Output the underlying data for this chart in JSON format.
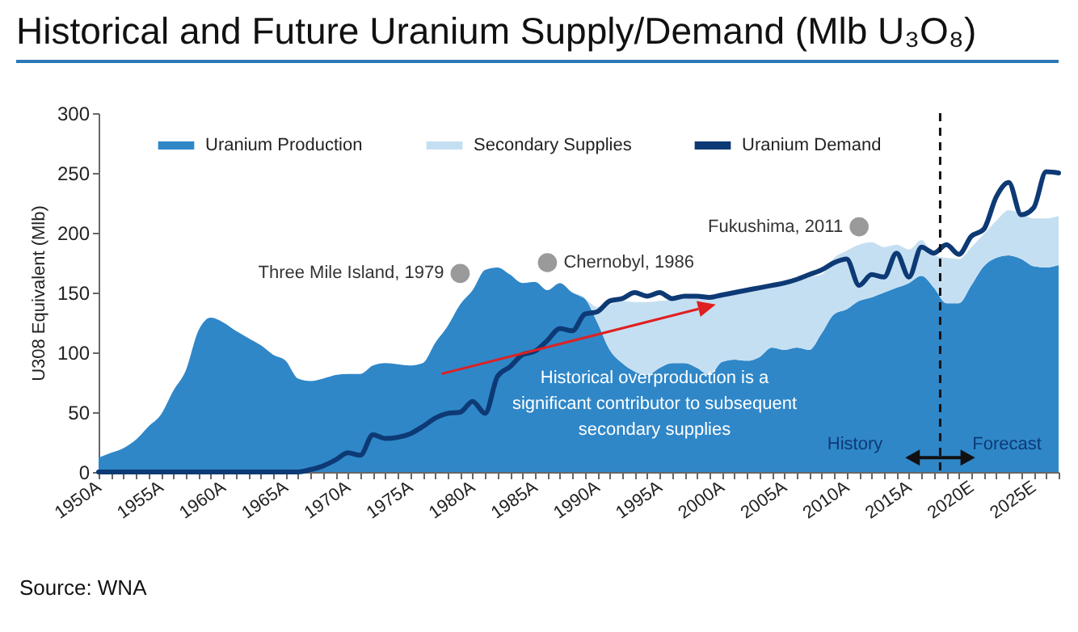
{
  "chart_data": {
    "type": "area",
    "title": "Historical and Future Uranium Supply/Demand (Mlb U₃O₈)",
    "ylabel": "U308 Equivalent (Mlb)",
    "stacked": true,
    "legend": "top",
    "x": [
      1950,
      1951,
      1952,
      1953,
      1954,
      1955,
      1956,
      1957,
      1958,
      1959,
      1960,
      1961,
      1962,
      1963,
      1964,
      1965,
      1966,
      1967,
      1968,
      1969,
      1970,
      1971,
      1972,
      1973,
      1974,
      1975,
      1976,
      1977,
      1978,
      1979,
      1980,
      1981,
      1982,
      1983,
      1984,
      1985,
      1986,
      1987,
      1988,
      1989,
      1990,
      1991,
      1992,
      1993,
      1994,
      1995,
      1996,
      1997,
      1998,
      1999,
      2000,
      2001,
      2002,
      2003,
      2004,
      2005,
      2006,
      2007,
      2008,
      2009,
      2010,
      2011,
      2012,
      2013,
      2014,
      2015,
      2016,
      2017,
      2018,
      2019,
      2020,
      2021,
      2022,
      2023,
      2024,
      2025,
      2026,
      2027
    ],
    "series": [
      {
        "name": "Uranium Production",
        "color": "#2f87c8",
        "values": [
          12,
          16,
          20,
          27,
          38,
          48,
          68,
          85,
          118,
          129,
          125,
          118,
          112,
          106,
          98,
          93,
          78,
          76,
          78,
          81,
          82,
          82,
          89,
          91,
          90,
          89,
          91,
          108,
          122,
          140,
          152,
          169,
          171,
          165,
          158,
          159,
          152,
          158,
          150,
          145,
          125,
          102,
          91,
          84,
          81,
          87,
          91,
          91,
          87,
          81,
          92,
          94,
          93,
          96,
          104,
          102,
          104,
          102,
          116,
          132,
          136,
          143,
          146,
          150,
          154,
          158,
          164,
          154,
          141,
          141,
          156,
          172,
          179,
          181,
          178,
          172,
          171,
          173
        ]
      },
      {
        "name": "Secondary Supplies",
        "color": "#c5dff2",
        "values": [
          0,
          0,
          0,
          0,
          0,
          0,
          0,
          0,
          0,
          0,
          0,
          0,
          0,
          0,
          0,
          0,
          0,
          0,
          0,
          0,
          0,
          0,
          0,
          0,
          0,
          0,
          0,
          0,
          0,
          0,
          0,
          0,
          0,
          0,
          0,
          0,
          0,
          0,
          0,
          0,
          13,
          38,
          52,
          58,
          61,
          56,
          53,
          54,
          59,
          66,
          56,
          56,
          59,
          58,
          52,
          55,
          55,
          61,
          49,
          47,
          49,
          47,
          46,
          38,
          36,
          28,
          30,
          27,
          38,
          37,
          32,
          27,
          31,
          38,
          38,
          40,
          41,
          41
        ]
      },
      {
        "name": "Uranium Demand",
        "type": "line",
        "color": "#0d3a75",
        "values": [
          0,
          0,
          0,
          0,
          0,
          0,
          0,
          0,
          0,
          0,
          0,
          0,
          0,
          0,
          0,
          0,
          0,
          2,
          5,
          10,
          16,
          14,
          31,
          28,
          29,
          32,
          38,
          45,
          49,
          50,
          59,
          49,
          80,
          88,
          98,
          101,
          110,
          120,
          118,
          132,
          134,
          143,
          145,
          150,
          147,
          150,
          145,
          147,
          147,
          146,
          148,
          150,
          152,
          154,
          156,
          158,
          161,
          165,
          169,
          175,
          178,
          156,
          165,
          163,
          183,
          163,
          188,
          183,
          190,
          182,
          197,
          203,
          230,
          242,
          215,
          221,
          251,
          250
        ]
      }
    ],
    "xlim": [
      1950,
      2027
    ],
    "xticks": [
      {
        "value": 1950,
        "label": "1950A"
      },
      {
        "value": 1951,
        "label": null
      },
      {
        "value": 1952,
        "label": null
      },
      {
        "value": 1953,
        "label": null
      },
      {
        "value": 1954,
        "label": null
      },
      {
        "value": 1955,
        "label": "1955A"
      },
      {
        "value": 1956,
        "label": null
      },
      {
        "value": 1957,
        "label": null
      },
      {
        "value": 1958,
        "label": null
      },
      {
        "value": 1959,
        "label": null
      },
      {
        "value": 1960,
        "label": "1960A"
      },
      {
        "value": 1961,
        "label": null
      },
      {
        "value": 1962,
        "label": null
      },
      {
        "value": 1963,
        "label": null
      },
      {
        "value": 1964,
        "label": null
      },
      {
        "value": 1965,
        "label": "1965A"
      },
      {
        "value": 1966,
        "label": null
      },
      {
        "value": 1967,
        "label": null
      },
      {
        "value": 1968,
        "label": null
      },
      {
        "value": 1969,
        "label": null
      },
      {
        "value": 1970,
        "label": "1970A"
      },
      {
        "value": 1971,
        "label": null
      },
      {
        "value": 1972,
        "label": null
      },
      {
        "value": 1973,
        "label": null
      },
      {
        "value": 1974,
        "label": null
      },
      {
        "value": 1975,
        "label": "1975A"
      },
      {
        "value": 1976,
        "label": null
      },
      {
        "value": 1977,
        "label": null
      },
      {
        "value": 1978,
        "label": null
      },
      {
        "value": 1979,
        "label": null
      },
      {
        "value": 1980,
        "label": "1980A"
      },
      {
        "value": 1981,
        "label": null
      },
      {
        "value": 1982,
        "label": null
      },
      {
        "value": 1983,
        "label": null
      },
      {
        "value": 1984,
        "label": null
      },
      {
        "value": 1985,
        "label": "1985A"
      },
      {
        "value": 1986,
        "label": null
      },
      {
        "value": 1987,
        "label": null
      },
      {
        "value": 1988,
        "label": null
      },
      {
        "value": 1989,
        "label": null
      },
      {
        "value": 1990,
        "label": "1990A"
      },
      {
        "value": 1991,
        "label": null
      },
      {
        "value": 1992,
        "label": null
      },
      {
        "value": 1993,
        "label": null
      },
      {
        "value": 1994,
        "label": null
      },
      {
        "value": 1995,
        "label": "1995A"
      },
      {
        "value": 1996,
        "label": null
      },
      {
        "value": 1997,
        "label": null
      },
      {
        "value": 1998,
        "label": null
      },
      {
        "value": 1999,
        "label": null
      },
      {
        "value": 2000,
        "label": "2000A"
      },
      {
        "value": 2001,
        "label": null
      },
      {
        "value": 2002,
        "label": null
      },
      {
        "value": 2003,
        "label": null
      },
      {
        "value": 2004,
        "label": null
      },
      {
        "value": 2005,
        "label": "2005A"
      },
      {
        "value": 2006,
        "label": null
      },
      {
        "value": 2007,
        "label": null
      },
      {
        "value": 2008,
        "label": null
      },
      {
        "value": 2009,
        "label": null
      },
      {
        "value": 2010,
        "label": "2010A"
      },
      {
        "value": 2011,
        "label": null
      },
      {
        "value": 2012,
        "label": null
      },
      {
        "value": 2013,
        "label": null
      },
      {
        "value": 2014,
        "label": null
      },
      {
        "value": 2015,
        "label": "2015A"
      },
      {
        "value": 2016,
        "label": null
      },
      {
        "value": 2017,
        "label": null
      },
      {
        "value": 2018,
        "label": null
      },
      {
        "value": 2019,
        "label": null
      },
      {
        "value": 2020,
        "label": "2020E"
      },
      {
        "value": 2021,
        "label": null
      },
      {
        "value": 2022,
        "label": null
      },
      {
        "value": 2023,
        "label": null
      },
      {
        "value": 2024,
        "label": null
      },
      {
        "value": 2025,
        "label": "2025E"
      },
      {
        "value": 2026,
        "label": null
      },
      {
        "value": 2027,
        "label": null
      }
    ],
    "ylim": [
      0,
      300
    ],
    "yticks": [
      0,
      50,
      100,
      150,
      200,
      250,
      300
    ],
    "ref_lines": [
      {
        "axis": "x",
        "value": 2017.5,
        "label": null,
        "color": "#111111",
        "line_style": "dashed"
      }
    ],
    "annotations": [
      {
        "text": "Three Mile Island, 1979",
        "x": 1979,
        "y": 166
      },
      {
        "text": "Chernobyl, 1986",
        "x": 1986,
        "y": 175
      },
      {
        "text": "Fukushima, 2011",
        "x": 2011,
        "y": 205
      },
      "Historical overproduction is a significant contributor to subsequent secondary supplies",
      "History",
      "Forecast",
      "Source: WNA"
    ]
  }
}
